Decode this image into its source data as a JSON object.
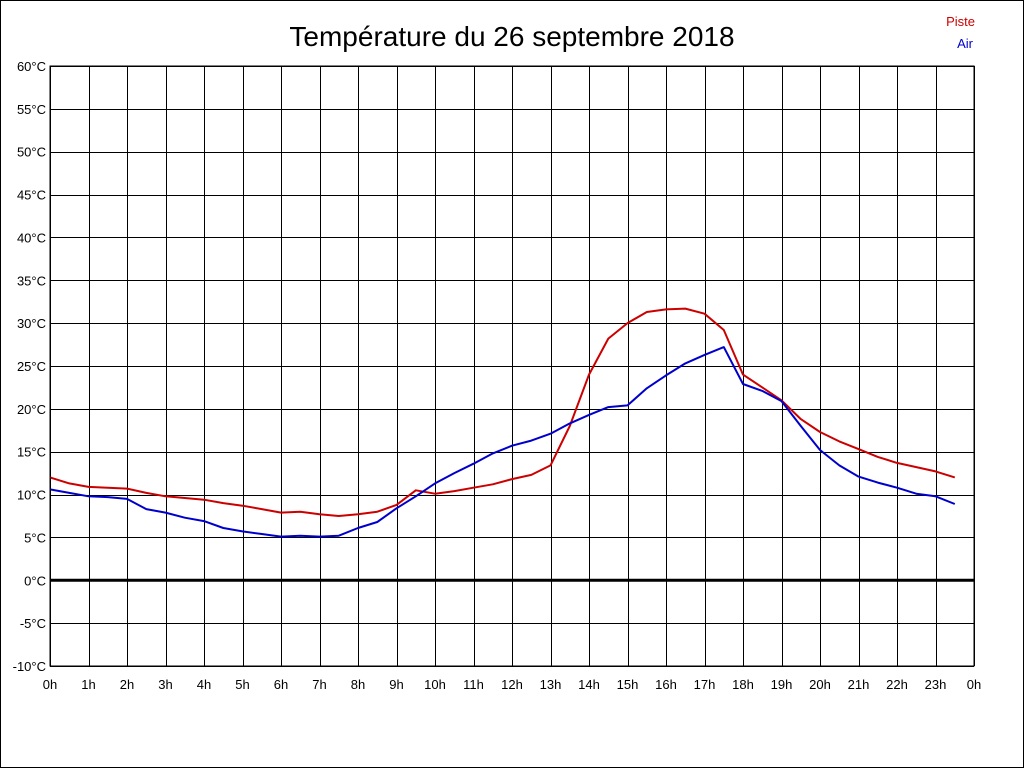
{
  "chart_data": {
    "type": "line",
    "title": "Température du 26 septembre 2018",
    "x_tick_labels": [
      "0h",
      "1h",
      "2h",
      "3h",
      "4h",
      "5h",
      "6h",
      "7h",
      "8h",
      "9h",
      "10h",
      "11h",
      "12h",
      "13h",
      "14h",
      "15h",
      "16h",
      "17h",
      "18h",
      "19h",
      "20h",
      "21h",
      "22h",
      "23h",
      "0h"
    ],
    "y_tick_labels": [
      "60°C",
      "55°C",
      "50°C",
      "45°C",
      "40°C",
      "35°C",
      "30°C",
      "25°C",
      "20°C",
      "15°C",
      "10°C",
      "5°C",
      "0°C",
      "-5°C",
      "-10°C"
    ],
    "xlim": [
      0,
      24
    ],
    "ylim": [
      -10,
      60
    ],
    "grid": true,
    "legend_position": "top-right",
    "x": [
      0,
      0.5,
      1,
      1.5,
      2,
      2.5,
      3,
      3.5,
      4,
      4.5,
      5,
      5.5,
      6,
      6.5,
      7,
      7.5,
      8,
      8.5,
      9,
      9.5,
      10,
      10.5,
      11,
      11.5,
      12,
      12.5,
      13,
      13.5,
      14,
      14.5,
      15,
      15.5,
      16,
      16.5,
      17,
      17.5,
      18,
      18.5,
      19,
      19.5,
      20,
      20.5,
      21,
      21.5,
      22,
      22.5,
      23,
      23.5
    ],
    "series": [
      {
        "name": "Piste",
        "color": "#cc0000",
        "values": [
          12.0,
          11.3,
          10.9,
          10.8,
          10.7,
          10.2,
          9.8,
          9.6,
          9.4,
          9.0,
          8.7,
          8.3,
          7.9,
          8.0,
          7.7,
          7.5,
          7.7,
          8.0,
          8.8,
          10.5,
          10.1,
          10.4,
          10.8,
          11.2,
          11.8,
          12.3,
          13.4,
          18.0,
          24.0,
          28.2,
          30.0,
          31.3,
          31.6,
          31.7,
          31.1,
          29.2,
          24.0,
          22.5,
          21.0,
          18.8,
          17.3,
          16.2,
          15.3,
          14.4,
          13.7,
          13.2,
          12.7,
          12.0
        ]
      },
      {
        "name": "Air",
        "color": "#0000cc",
        "values": [
          10.6,
          10.2,
          9.8,
          9.7,
          9.5,
          8.3,
          7.9,
          7.3,
          6.9,
          6.1,
          5.7,
          5.4,
          5.1,
          5.2,
          5.1,
          5.2,
          6.1,
          6.8,
          8.4,
          9.8,
          11.3,
          12.5,
          13.6,
          14.8,
          15.7,
          16.3,
          17.1,
          18.3,
          19.3,
          20.2,
          20.4,
          22.4,
          23.9,
          25.3,
          26.3,
          27.2,
          22.9,
          22.1,
          20.9,
          18.0,
          15.2,
          13.4,
          12.1,
          11.4,
          10.8,
          10.1,
          9.8,
          8.9
        ]
      }
    ]
  }
}
